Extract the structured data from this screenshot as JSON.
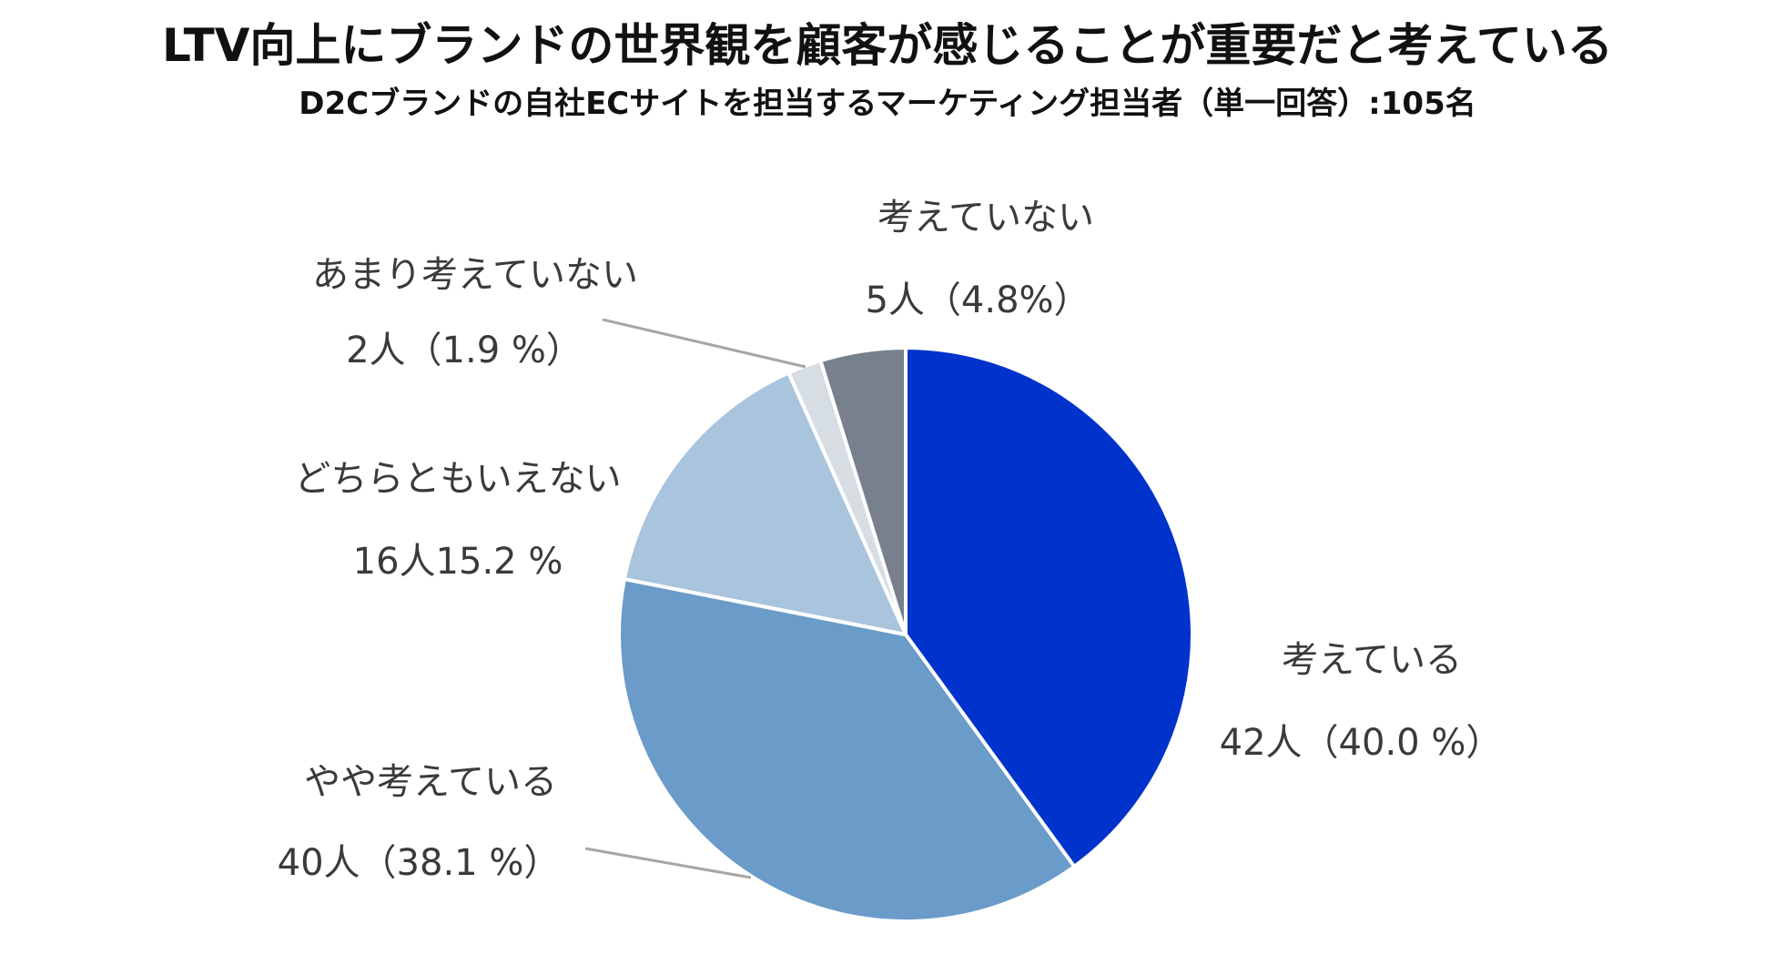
{
  "title": "LTV向上にブランドの世界観を顧客が感じることが重要だと考えている",
  "subtitle": "D2Cブランドの自社ECサイトを担当するマーケティング担当者（単一回答）:105名",
  "chart_data": {
    "type": "pie",
    "start_angle_deg": 0,
    "direction": "clockwise",
    "slices": [
      {
        "label": "考えている",
        "count_label": "42人（40.0 %）",
        "value": 40.0,
        "color": "#0033cc"
      },
      {
        "label": "やや考えている",
        "count_label": "40人（38.1 %）",
        "value": 38.1,
        "color": "#6a9bc9"
      },
      {
        "label": "どちらともいえない",
        "count_label": "16人15.2 %",
        "value": 15.2,
        "color": "#a9c4dd"
      },
      {
        "label": "あまり考えていない",
        "count_label": "2人（1.9 %）",
        "value": 1.9,
        "color": "#d6dde3"
      },
      {
        "label": "考えていない",
        "count_label": "5人（4.8%）",
        "value": 4.8,
        "color": "#77808c"
      }
    ]
  }
}
